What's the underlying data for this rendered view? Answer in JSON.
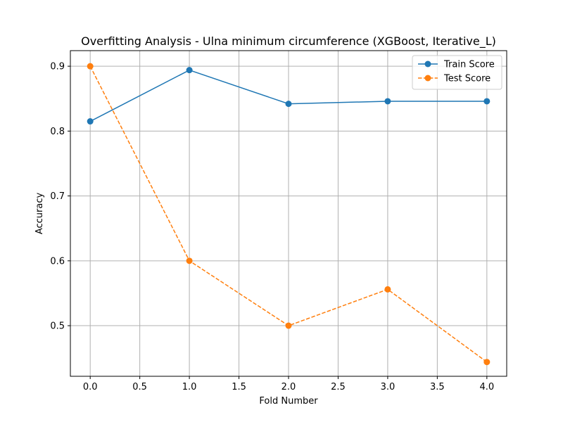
{
  "chart_data": {
    "type": "line",
    "title": "Overfitting Analysis - Ulna minimum circumference (XGBoost, Iterative_L)",
    "xlabel": "Fold Number",
    "ylabel": "Accuracy",
    "x": [
      0,
      1,
      2,
      3,
      4
    ],
    "xlim": [
      -0.2,
      4.2
    ],
    "ylim": [
      0.422,
      0.924
    ],
    "xticks": [
      0.0,
      0.5,
      1.0,
      1.5,
      2.0,
      2.5,
      3.0,
      3.5,
      4.0
    ],
    "xtick_labels": [
      "0.0",
      "0.5",
      "1.0",
      "1.5",
      "2.0",
      "2.5",
      "3.0",
      "3.5",
      "4.0"
    ],
    "yticks": [
      0.5,
      0.6,
      0.7,
      0.8,
      0.9
    ],
    "ytick_labels": [
      "0.5",
      "0.6",
      "0.7",
      "0.8",
      "0.9"
    ],
    "grid": true,
    "legend_position": "upper right",
    "series": [
      {
        "name": "Train Score",
        "values": [
          0.815,
          0.894,
          0.842,
          0.846,
          0.846
        ],
        "color": "#1f77b4",
        "linestyle": "solid",
        "marker": "circle"
      },
      {
        "name": "Test Score",
        "values": [
          0.9,
          0.6,
          0.5,
          0.556,
          0.444
        ],
        "color": "#ff7f0e",
        "linestyle": "dashed",
        "marker": "circle"
      }
    ]
  }
}
